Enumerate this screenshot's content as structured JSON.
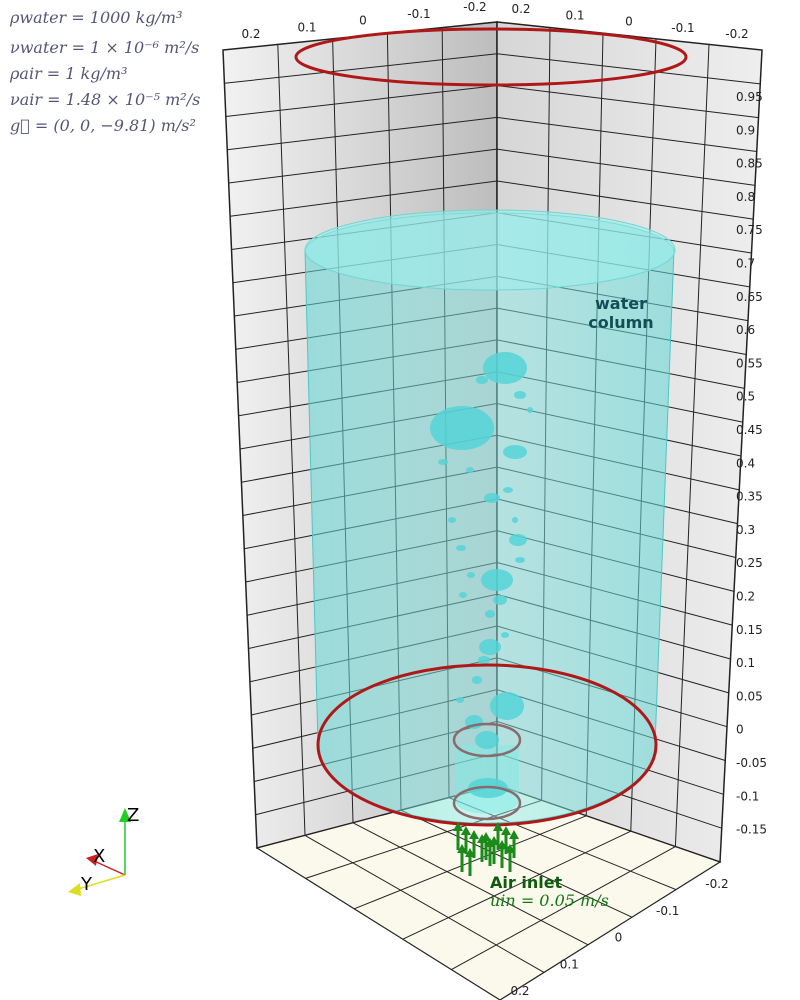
{
  "parameters": {
    "rho_water": "ρwater = 1000 kg/m³",
    "nu_water": "νwater = 1 × 10⁻⁶ m²/s",
    "rho_air": "ρair = 1 kg/m³",
    "nu_air": "νair = 1.48 × 10⁻⁵ m²/s",
    "gravity": "g⃗ = (0, 0, −9.81) m/s²"
  },
  "labels": {
    "water_line1": "water",
    "water_line2": "column",
    "inlet_title": "Air inlet",
    "inlet_velocity": "uin = 0.05 m/s"
  },
  "axes": {
    "z_ticks": [
      "0.95",
      "0.9",
      "0.85",
      "0.8",
      "0.75",
      "0.7",
      "0.65",
      "0.6",
      "0.55",
      "0.5",
      "0.45",
      "0.4",
      "0.35",
      "0.3",
      "0.25",
      "0.2",
      "0.15",
      "0.1",
      "0.05",
      "0",
      "-0.05",
      "-0.1",
      "-0.15"
    ],
    "top_left_ticks": [
      "0.2",
      "0.1",
      "0",
      "-0.1",
      "-0.2"
    ],
    "top_right_ticks": [
      "0.2",
      "0.1",
      "0",
      "-0.1",
      "-0.2"
    ],
    "bottom_right_ticks": [
      "-0.2",
      "-0.1",
      "0",
      "0.1",
      "0.2"
    ]
  },
  "orientation": {
    "x": "X",
    "y": "Y",
    "z": "Z"
  },
  "colors": {
    "water": "#6fe3e0",
    "ring": "#b01818",
    "arrows": "#1a8a1a",
    "grid": "#222222"
  }
}
